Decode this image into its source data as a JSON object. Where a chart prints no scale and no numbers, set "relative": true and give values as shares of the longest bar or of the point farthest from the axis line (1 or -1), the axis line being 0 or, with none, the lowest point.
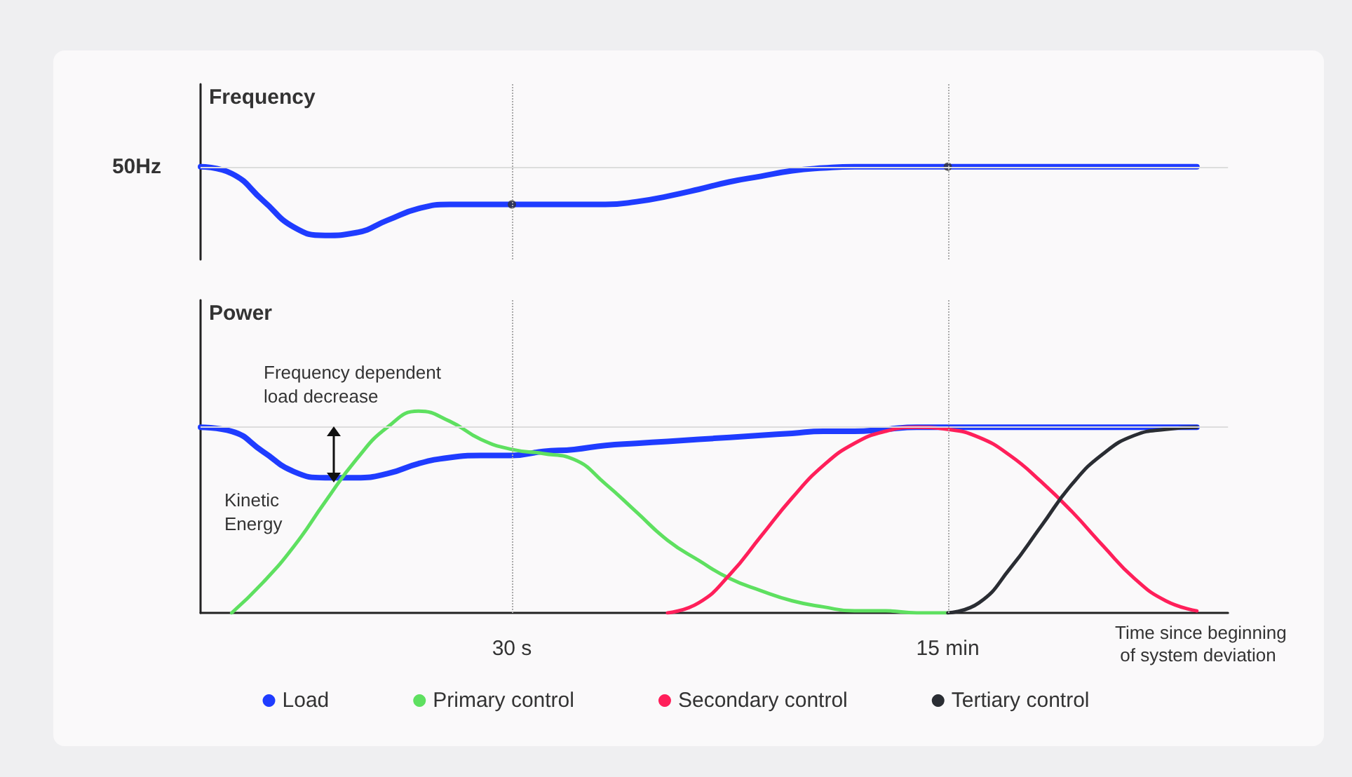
{
  "chart_data": [
    {
      "type": "line",
      "relative": true,
      "ylabel": "Frequency",
      "tick_labels": false,
      "marker": "none",
      "categories": [
        null,
        null,
        null,
        null,
        null,
        null,
        null,
        null,
        null,
        null,
        "30 s",
        null,
        null,
        null,
        null,
        null,
        null,
        null,
        null,
        null,
        null,
        null,
        null,
        null,
        "15 min",
        null,
        null,
        null,
        null,
        null,
        null,
        null,
        null,
        null
      ],
      "series": [
        {
          "color": "#1f3cff",
          "values": [
            1,
            0.9,
            0.51,
            0.12,
            0,
            0.04,
            0.22,
            0.39,
            0.45,
            0.45,
            0.45,
            0.45,
            0.45,
            0.45,
            0.49,
            0.57,
            0.67,
            0.78,
            0.86,
            0.94,
            0.98,
            1,
            1,
            1,
            1,
            1,
            1,
            1,
            1,
            1,
            1,
            1,
            1,
            null
          ]
        },
        {
          "type": "scatter",
          "marker": "circle",
          "color": "#333333",
          "x": [
            "30 s",
            "15 min"
          ],
          "values": [
            0.45,
            1
          ]
        }
      ],
      "ref_lines": [
        {
          "axis": "y",
          "value": 1,
          "label": "50Hz",
          "color": "#dddddd"
        },
        {
          "axis": "x",
          "value": "30 s",
          "line_style": "dotted",
          "color": "#aaaaaa"
        },
        {
          "axis": "x",
          "value": "15 min",
          "line_style": "dotted",
          "color": "#aaaaaa"
        }
      ]
    },
    {
      "type": "line",
      "relative": true,
      "ylabel": "Power",
      "xlabel": "Time since beginning of system deviation",
      "tick_labels": "x",
      "marker": "none",
      "legend": "bottom",
      "categories": [
        null,
        null,
        null,
        null,
        null,
        null,
        null,
        null,
        null,
        null,
        "30 s",
        null,
        null,
        null,
        null,
        null,
        null,
        null,
        null,
        null,
        null,
        null,
        null,
        null,
        "15 min",
        null,
        null,
        null,
        null,
        null,
        null,
        null,
        null,
        null
      ],
      "series": [
        {
          "name": "Load",
          "color": "#1f3cff",
          "values": [
            0.92,
            0.9,
            0.8,
            0.7,
            0.67,
            0.67,
            0.69,
            0.74,
            0.77,
            0.78,
            0.78,
            0.8,
            0.81,
            0.83,
            0.84,
            0.85,
            0.86,
            0.87,
            0.88,
            0.89,
            0.9,
            0.9,
            0.91,
            0.92,
            0.92,
            0.92,
            0.92,
            0.92,
            0.92,
            0.92,
            0.92,
            0.92,
            0.92,
            null
          ]
        },
        {
          "name": "Primary control",
          "color": "#5ee060",
          "values": [
            null,
            0,
            0.15,
            0.33,
            0.55,
            0.76,
            0.92,
            1,
            0.95,
            0.86,
            0.81,
            0.79,
            0.76,
            0.64,
            0.5,
            0.36,
            0.26,
            0.17,
            0.11,
            0.06,
            0.03,
            0.01,
            0.01,
            0,
            0,
            null,
            null,
            null,
            null,
            null,
            null,
            null,
            null,
            null
          ]
        },
        {
          "name": "Secondary control",
          "color": "#ff1f5a",
          "values": [
            null,
            null,
            null,
            null,
            null,
            null,
            null,
            null,
            null,
            null,
            null,
            null,
            null,
            null,
            null,
            0,
            0.05,
            0.19,
            0.38,
            0.57,
            0.73,
            0.84,
            0.9,
            0.92,
            0.91,
            0.87,
            0.78,
            0.65,
            0.5,
            0.33,
            0.17,
            0.06,
            0.01,
            null
          ]
        },
        {
          "name": "Tertiary control",
          "color": "#2a2d33",
          "values": [
            null,
            null,
            null,
            null,
            null,
            null,
            null,
            null,
            null,
            null,
            null,
            null,
            null,
            null,
            null,
            null,
            null,
            null,
            null,
            null,
            null,
            null,
            null,
            null,
            0,
            0.05,
            0.22,
            0.43,
            0.64,
            0.79,
            0.88,
            0.91,
            0.92,
            null
          ]
        }
      ],
      "ref_lines": [
        {
          "axis": "y",
          "value": 0.92,
          "color": "#dddddd"
        },
        {
          "axis": "x",
          "value": "30 s",
          "line_style": "dotted",
          "color": "#aaaaaa"
        },
        {
          "axis": "x",
          "value": "15 min",
          "line_style": "dotted",
          "color": "#aaaaaa"
        }
      ],
      "annotations": [
        "Frequency dependent load decrease",
        "Kinetic Energy"
      ]
    }
  ]
}
